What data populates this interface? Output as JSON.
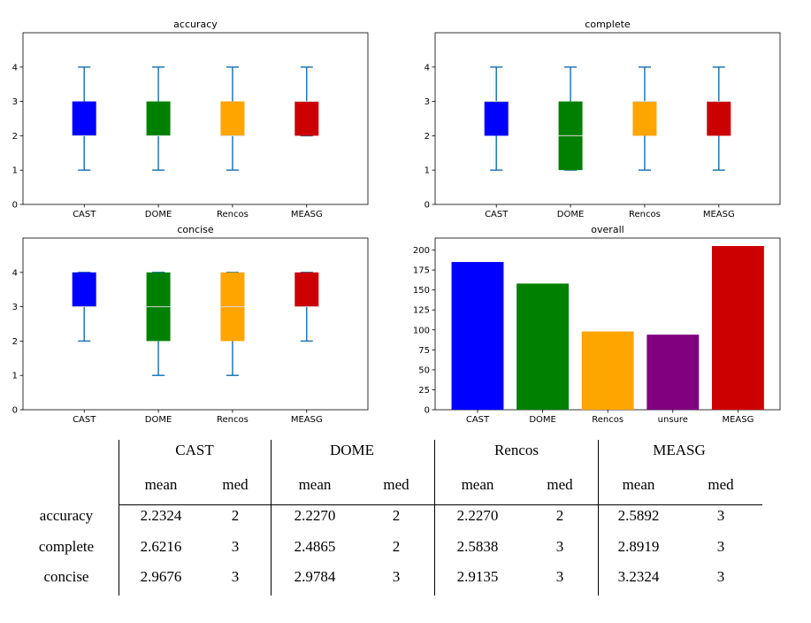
{
  "chart_data": [
    {
      "type": "box",
      "title": "accuracy",
      "categories": [
        "CAST",
        "DOME",
        "Rencos",
        "MEASG"
      ],
      "colors": [
        "#0000ff",
        "#008000",
        "#ffa500",
        "#cc0000"
      ],
      "boxes": [
        {
          "min": 1,
          "q1": 2,
          "median": 2,
          "q3": 3,
          "max": 4
        },
        {
          "min": 1,
          "q1": 2,
          "median": 2,
          "q3": 3,
          "max": 4
        },
        {
          "min": 1,
          "q1": 2,
          "median": 2,
          "q3": 3,
          "max": 4
        },
        {
          "min": 2,
          "q1": 2,
          "median": 3,
          "q3": 3,
          "max": 4
        }
      ],
      "ylim": [
        0,
        5
      ],
      "yticks": [
        0,
        1,
        2,
        3,
        4
      ]
    },
    {
      "type": "box",
      "title": "complete",
      "categories": [
        "CAST",
        "DOME",
        "Rencos",
        "MEASG"
      ],
      "colors": [
        "#0000ff",
        "#008000",
        "#ffa500",
        "#cc0000"
      ],
      "boxes": [
        {
          "min": 1,
          "q1": 2,
          "median": 3,
          "q3": 3,
          "max": 4
        },
        {
          "min": 1,
          "q1": 1,
          "median": 2,
          "q3": 3,
          "max": 4
        },
        {
          "min": 1,
          "q1": 2,
          "median": 3,
          "q3": 3,
          "max": 4
        },
        {
          "min": 1,
          "q1": 2,
          "median": 3,
          "q3": 3,
          "max": 4
        }
      ],
      "ylim": [
        0,
        5
      ],
      "yticks": [
        0,
        1,
        2,
        3,
        4
      ]
    },
    {
      "type": "box",
      "title": "concise",
      "categories": [
        "CAST",
        "DOME",
        "Rencos",
        "MEASG"
      ],
      "colors": [
        "#0000ff",
        "#008000",
        "#ffa500",
        "#cc0000"
      ],
      "boxes": [
        {
          "min": 2,
          "q1": 3,
          "median": 3,
          "q3": 4,
          "max": 4
        },
        {
          "min": 1,
          "q1": 2,
          "median": 3,
          "q3": 4,
          "max": 4
        },
        {
          "min": 1,
          "q1": 2,
          "median": 3,
          "q3": 4,
          "max": 4
        },
        {
          "min": 2,
          "q1": 3,
          "median": 3,
          "q3": 4,
          "max": 4
        }
      ],
      "ylim": [
        0,
        5
      ],
      "yticks": [
        0,
        1,
        2,
        3,
        4
      ]
    },
    {
      "type": "bar",
      "title": "overall",
      "categories": [
        "CAST",
        "DOME",
        "Rencos",
        "unsure",
        "MEASG"
      ],
      "values": [
        185,
        158,
        98,
        94,
        205
      ],
      "colors": [
        "#0000ff",
        "#008000",
        "#ffa500",
        "#800080",
        "#cc0000"
      ],
      "ylim": [
        0,
        215
      ],
      "yticks": [
        0,
        25,
        50,
        75,
        100,
        125,
        150,
        175,
        200
      ]
    }
  ],
  "table": {
    "groups": [
      "CAST",
      "DOME",
      "Rencos",
      "MEASG"
    ],
    "subheaders": [
      "mean",
      "med"
    ],
    "rows": [
      {
        "label": "accuracy",
        "values": [
          "2.2324",
          "2",
          "2.2270",
          "2",
          "2.2270",
          "2",
          "2.5892",
          "3"
        ]
      },
      {
        "label": "complete",
        "values": [
          "2.6216",
          "3",
          "2.4865",
          "2",
          "2.5838",
          "3",
          "2.8919",
          "3"
        ]
      },
      {
        "label": "concise",
        "values": [
          "2.9676",
          "3",
          "2.9784",
          "3",
          "2.9135",
          "3",
          "3.2324",
          "3"
        ]
      }
    ]
  }
}
